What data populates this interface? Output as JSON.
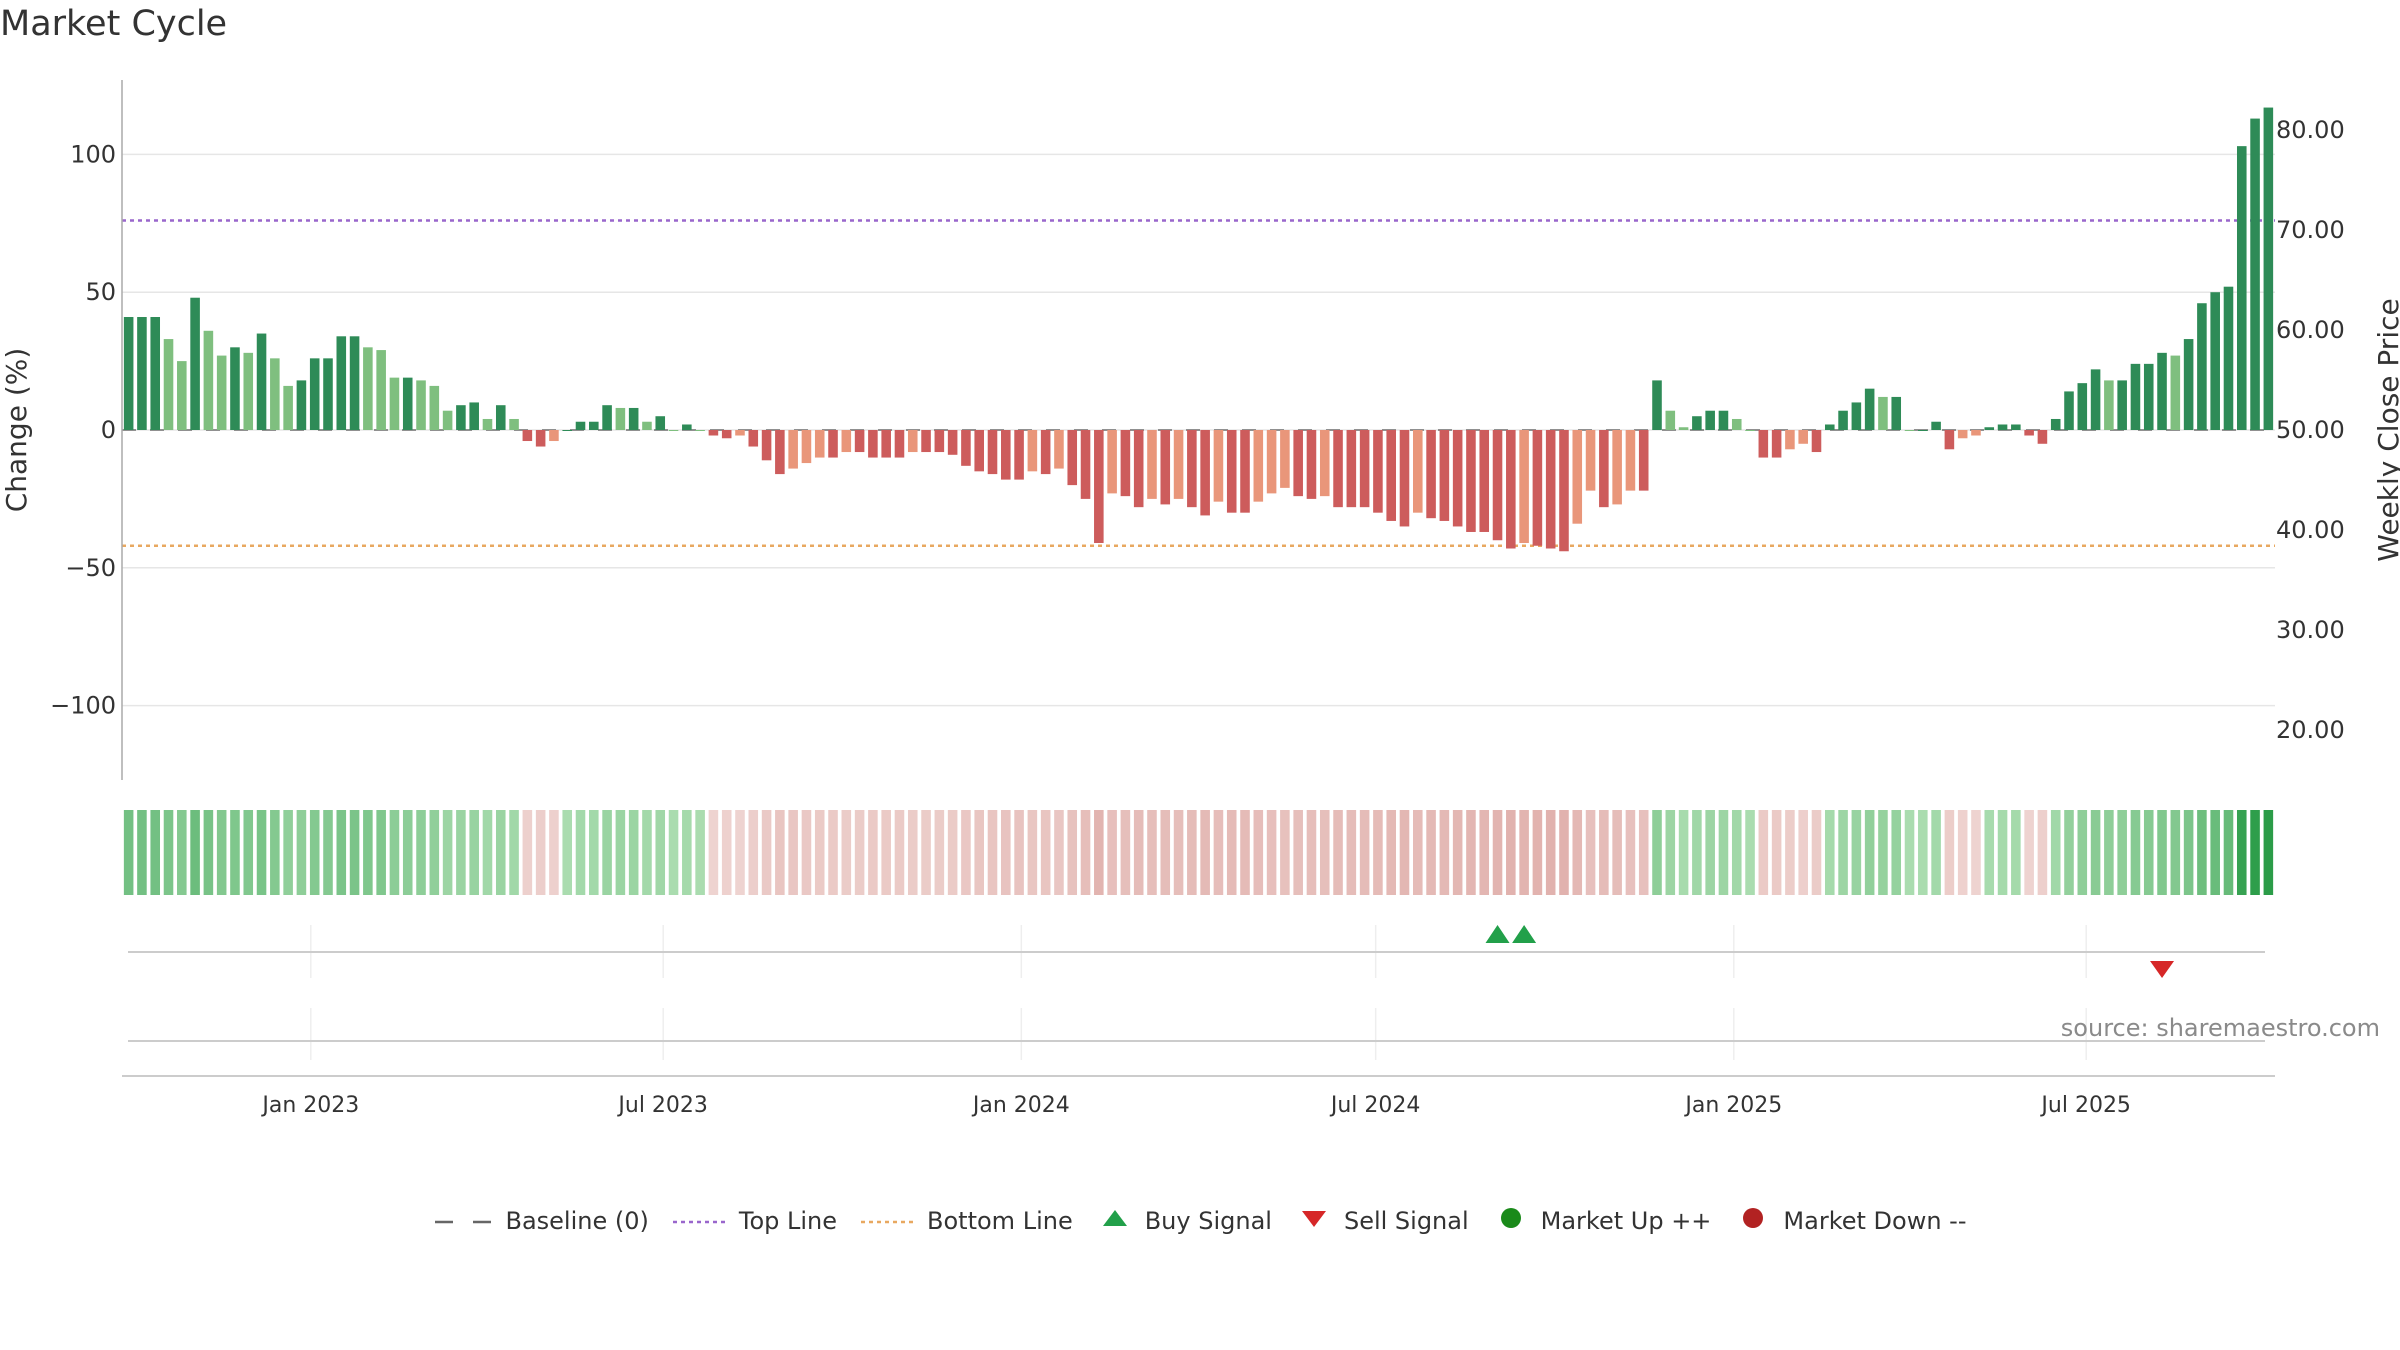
{
  "title": "Market Cycle",
  "source": "source: sharemaestro.com",
  "colors": {
    "pos_dark": "#2e8b57",
    "pos_light": "#7fbf7f",
    "neg_dark": "#cd5c5c",
    "neg_light": "#e9967a",
    "top_line": "#9966cc",
    "bottom_line": "#e8a860",
    "buy": "#22a04a",
    "sell": "#d62728",
    "market_up": "#1a8a1a",
    "market_down": "#b22222"
  },
  "legend": [
    {
      "label": "Baseline (0)",
      "symbol": "dash-gray"
    },
    {
      "label": "Top Line",
      "symbol": "dotted-purple"
    },
    {
      "label": "Bottom Line",
      "symbol": "dotted-orange"
    },
    {
      "label": "Buy Signal",
      "symbol": "triangle-up-green"
    },
    {
      "label": "Sell Signal",
      "symbol": "triangle-down-red"
    },
    {
      "label": "Market Up ++",
      "symbol": "circle-green"
    },
    {
      "label": "Market Down --",
      "symbol": "circle-red"
    }
  ],
  "chart_data": {
    "type": "bar",
    "title": "Market Cycle",
    "ylabel": "Change (%)",
    "y2label": "Weekly Close Price",
    "ylim": [
      -127,
      127
    ],
    "y2lim": [
      15,
      85
    ],
    "yticks": [
      100,
      50,
      0,
      -50,
      -100
    ],
    "ytick_labels": [
      "100",
      "50",
      "0",
      "−50",
      "−100"
    ],
    "y2ticks": [
      80,
      70,
      60,
      50,
      40,
      30,
      20
    ],
    "y2tick_labels": [
      "80.00",
      "70.00",
      "60.00",
      "50.00",
      "40.00",
      "30.00",
      "20.00"
    ],
    "x_start": "2022-09-26",
    "x_end": "2025-10-06",
    "xtick_labels": [
      {
        "date": "2023-01-01",
        "label": "Jan 2023"
      },
      {
        "date": "2023-07-01",
        "label": "Jul 2023"
      },
      {
        "date": "2024-01-01",
        "label": "Jan 2024"
      },
      {
        "date": "2024-07-01",
        "label": "Jul 2024"
      },
      {
        "date": "2025-01-01",
        "label": "Jan 2025"
      },
      {
        "date": "2025-07-01",
        "label": "Jul 2025"
      }
    ],
    "top_line": 76,
    "bottom_line": -42,
    "baseline": 0,
    "series_change": [
      41,
      41,
      41,
      33,
      25,
      48,
      36,
      27,
      30,
      28,
      35,
      26,
      16,
      18,
      26,
      26,
      34,
      34,
      30,
      29,
      19,
      19,
      18,
      16,
      7,
      9,
      10,
      4,
      9,
      4,
      -4,
      -6,
      -4,
      0,
      3,
      3,
      9,
      8,
      8,
      3,
      5,
      0,
      2,
      0,
      -2,
      -3,
      -2,
      -6,
      -11,
      -16,
      -14,
      -12,
      -10,
      -10,
      -8,
      -8,
      -10,
      -10,
      -10,
      -8,
      -8,
      -8,
      -9,
      -13,
      -15,
      -16,
      -18,
      -18,
      -15,
      -16,
      -14,
      -20,
      -25,
      -41,
      -23,
      -24,
      -28,
      -25,
      -27,
      -25,
      -28,
      -31,
      -26,
      -30,
      -30,
      -26,
      -23,
      -21,
      -24,
      -25,
      -24,
      -28,
      -28,
      -28,
      -30,
      -33,
      -35,
      -30,
      -32,
      -33,
      -35,
      -37,
      -37,
      -40,
      -43,
      -41,
      -42,
      -43,
      -44,
      -34,
      -22,
      -28,
      -27,
      -22,
      -22,
      18,
      7,
      1,
      5,
      7,
      7,
      4,
      0,
      -10,
      -10,
      -7,
      -5,
      -8,
      2,
      7,
      10,
      15,
      12,
      12,
      0,
      0,
      3,
      -7,
      -3,
      -2,
      1,
      2,
      2,
      -2,
      -5,
      4,
      14,
      17,
      22,
      18,
      18,
      24,
      24,
      28,
      27,
      33,
      46,
      50,
      52,
      103,
      113,
      117
    ],
    "buy_signals": [
      {
        "index": 103
      },
      {
        "index": 105
      }
    ],
    "sell_signals": [
      {
        "index": 153
      }
    ],
    "market_up": [],
    "market_down": []
  }
}
